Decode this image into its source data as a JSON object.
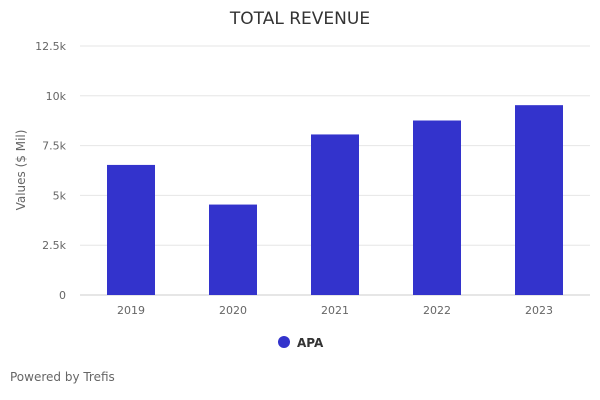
{
  "chart_data": {
    "type": "bar",
    "title": "TOTAL REVENUE",
    "xlabel": "",
    "ylabel": "Values ($ Mil)",
    "categories": [
      "2019",
      "2020",
      "2021",
      "2022",
      "2023"
    ],
    "series": [
      {
        "name": "APA",
        "color": "#3333cc",
        "values": [
          6530,
          4540,
          8060,
          8760,
          9530
        ]
      }
    ],
    "ylim": [
      0,
      12500
    ],
    "yticks": [
      0,
      2500,
      5000,
      7500,
      10000,
      12500
    ],
    "ytick_labels": [
      "0",
      "2.5k",
      "5k",
      "7.5k",
      "10k",
      "12.5k"
    ],
    "grid": true,
    "legend_position": "bottom-center"
  },
  "footer": {
    "credit": "Powered by Trefis"
  }
}
